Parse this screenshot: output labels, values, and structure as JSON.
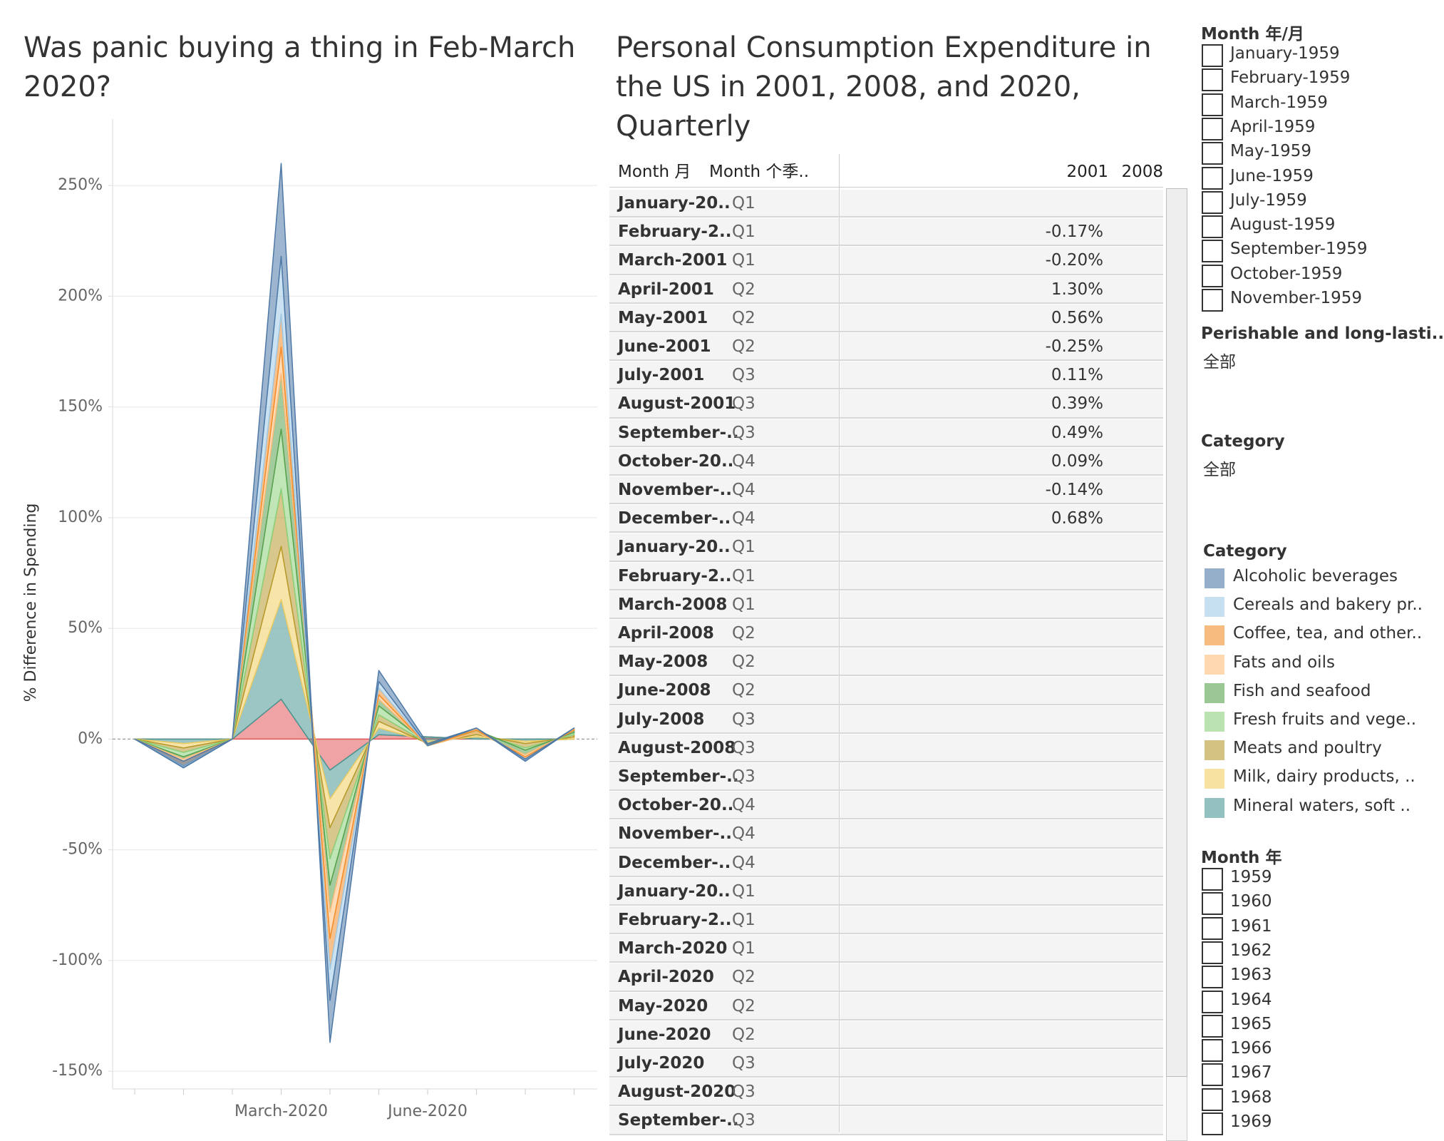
{
  "chart_data": {
    "type": "area",
    "stacked": true,
    "title": "Was panic buying a thing in Feb-March 2020?",
    "ylabel": "% Difference in Spending",
    "categories": [
      null,
      null,
      null,
      "March-2020",
      null,
      null,
      "June-2020",
      null,
      null,
      null
    ],
    "ylim": [
      -158,
      280
    ],
    "yticks": [
      {
        "value": -150,
        "label": "-150%"
      },
      {
        "value": -100,
        "label": "-100%"
      },
      {
        "value": -50,
        "label": "-50%"
      },
      {
        "value": 0,
        "label": "0%"
      },
      {
        "value": 50,
        "label": "50%"
      },
      {
        "value": 100,
        "label": "100%"
      },
      {
        "value": 150,
        "label": "150%"
      },
      {
        "value": 200,
        "label": "200%"
      },
      {
        "value": 250,
        "label": "250%"
      }
    ],
    "grid": true,
    "legend_title": "Category",
    "series": [
      {
        "name": "Alcoholic beverages",
        "color": "#4e79a7",
        "values": [
          0,
          3,
          0,
          42,
          -19,
          5,
          1,
          0,
          1,
          0
        ]
      },
      {
        "name": "Cereals and bakery pr..",
        "color": "#a0cbe8",
        "values": [
          0,
          -1,
          0,
          26,
          -14,
          3,
          0,
          0,
          -1,
          0
        ]
      },
      {
        "name": "Coffee, tea, and other..",
        "color": "#f28e2b",
        "values": [
          0,
          -2,
          0,
          15,
          -14,
          3,
          0,
          1,
          -1,
          1
        ]
      },
      {
        "name": "Fats and oils",
        "color": "#ffbe7d",
        "values": [
          0,
          -1,
          0,
          12,
          -12,
          2,
          0,
          1,
          -1,
          0
        ]
      },
      {
        "name": "Fish and seafood",
        "color": "#59a14f",
        "values": [
          0,
          -1,
          0,
          25,
          -12,
          3,
          -1,
          -1,
          -2,
          1
        ]
      },
      {
        "name": "Fresh fruits and vege..",
        "color": "#8cd17d",
        "values": [
          0,
          -2,
          0,
          27,
          -12,
          4,
          0,
          1,
          -1,
          1
        ]
      },
      {
        "name": "Meats and poultry",
        "color": "#b6992d",
        "values": [
          0,
          -2,
          0,
          26,
          -14,
          3,
          0,
          1,
          -2,
          1
        ]
      },
      {
        "name": "Milk, dairy products, ..",
        "color": "#f1ce63",
        "values": [
          0,
          -2,
          0,
          24,
          -13,
          3,
          -1,
          1,
          -1,
          1
        ]
      },
      {
        "name": "Mineral waters, soft ..",
        "color": "#499894",
        "values": [
          0,
          -2,
          0,
          45,
          -13,
          3,
          -2,
          1,
          -1,
          0
        ]
      },
      {
        "color": "#e15759",
        "values": [
          0,
          0,
          0,
          18,
          -14,
          2,
          1,
          0,
          0,
          0
        ]
      }
    ]
  },
  "table": {
    "title": "Personal Consumption Expenditure in the US in 2001, 2008, and 2020, Quarterly",
    "headers": [
      "Month 月",
      "Month 个季..",
      "2001",
      "2008"
    ],
    "rows": [
      {
        "month": "January-20..",
        "quarter": "Q1"
      },
      {
        "month": "February-2..",
        "quarter": "Q1",
        "value": "-0.17%"
      },
      {
        "month": "March-2001",
        "quarter": "Q1",
        "value": "-0.20%"
      },
      {
        "month": "April-2001",
        "quarter": "Q2",
        "value": "1.30%"
      },
      {
        "month": "May-2001",
        "quarter": "Q2",
        "value": "0.56%"
      },
      {
        "month": "June-2001",
        "quarter": "Q2",
        "value": "-0.25%"
      },
      {
        "month": "July-2001",
        "quarter": "Q3",
        "value": "0.11%"
      },
      {
        "month": "August-2001",
        "quarter": "Q3",
        "value": "0.39%"
      },
      {
        "month": "September-..",
        "quarter": "Q3",
        "value": "0.49%"
      },
      {
        "month": "October-20..",
        "quarter": "Q4",
        "value": "0.09%"
      },
      {
        "month": "November-..",
        "quarter": "Q4",
        "value": "-0.14%"
      },
      {
        "month": "December-..",
        "quarter": "Q4",
        "value": "0.68%"
      },
      {
        "month": "January-20..",
        "quarter": "Q1"
      },
      {
        "month": "February-2..",
        "quarter": "Q1"
      },
      {
        "month": "March-2008",
        "quarter": "Q1"
      },
      {
        "month": "April-2008",
        "quarter": "Q2"
      },
      {
        "month": "May-2008",
        "quarter": "Q2"
      },
      {
        "month": "June-2008",
        "quarter": "Q2"
      },
      {
        "month": "July-2008",
        "quarter": "Q3"
      },
      {
        "month": "August-2008",
        "quarter": "Q3"
      },
      {
        "month": "September-..",
        "quarter": "Q3"
      },
      {
        "month": "October-20..",
        "quarter": "Q4"
      },
      {
        "month": "November-..",
        "quarter": "Q4"
      },
      {
        "month": "December-..",
        "quarter": "Q4"
      },
      {
        "month": "January-20..",
        "quarter": "Q1"
      },
      {
        "month": "February-2..",
        "quarter": "Q1"
      },
      {
        "month": "March-2020",
        "quarter": "Q1"
      },
      {
        "month": "April-2020",
        "quarter": "Q2"
      },
      {
        "month": "May-2020",
        "quarter": "Q2"
      },
      {
        "month": "June-2020",
        "quarter": "Q2"
      },
      {
        "month": "July-2020",
        "quarter": "Q3"
      },
      {
        "month": "August-2020",
        "quarter": "Q3"
      },
      {
        "month": "September-..",
        "quarter": "Q3"
      }
    ]
  },
  "filters": {
    "month_year": {
      "title": "Month 年/月",
      "items": [
        "January-1959",
        "February-1959",
        "March-1959",
        "April-1959",
        "May-1959",
        "June-1959",
        "July-1959",
        "August-1959",
        "September-1959",
        "October-1959",
        "November-1959"
      ]
    },
    "perishable": {
      "title": "Perishable and long-lasti..",
      "value": "全部"
    },
    "category": {
      "title": "Category",
      "value": "全部"
    },
    "month": {
      "title": "Month 年",
      "items": [
        "1959",
        "1960",
        "1961",
        "1962",
        "1963",
        "1964",
        "1965",
        "1966",
        "1967",
        "1968",
        "1969"
      ]
    }
  }
}
